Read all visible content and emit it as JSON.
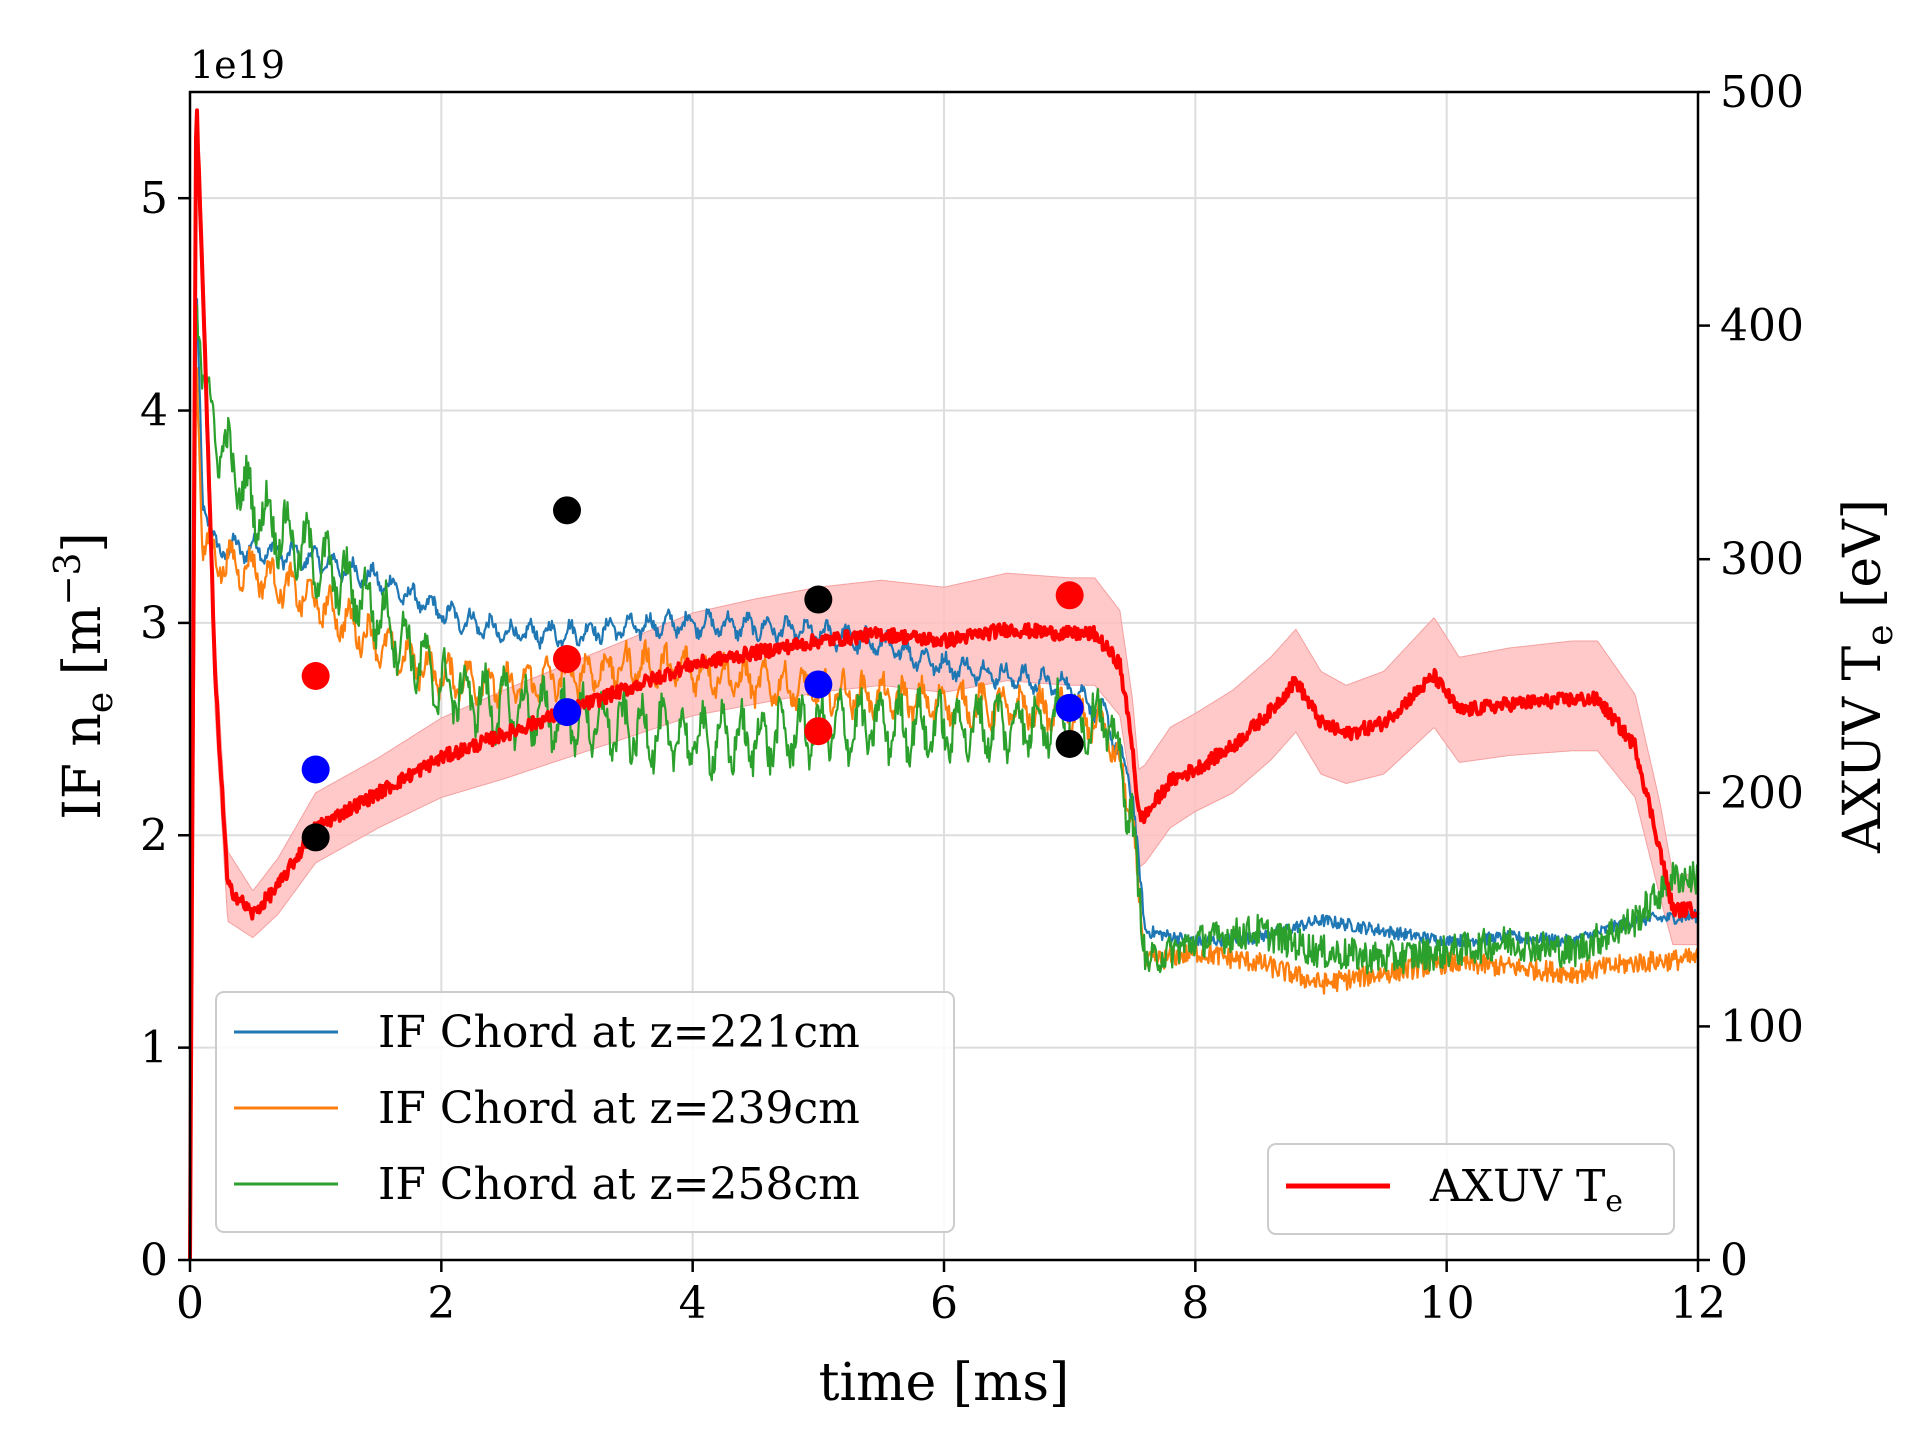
{
  "chart_data": {
    "type": "line",
    "xlabel": "time [ms]",
    "ylabel_left": "IF n",
    "ylabel_left_sub": "e",
    "ylabel_left_unit_open": " [m",
    "ylabel_left_sup": "−3",
    "ylabel_left_unit_close": "]",
    "ylabel_right": "AXUV T",
    "ylabel_right_sub": "e",
    "ylabel_right_unit": " [eV]",
    "offset_text": "1e19",
    "xlim": [
      0,
      12
    ],
    "ylim_left": [
      0,
      5.5
    ],
    "ylim_right": [
      0,
      500
    ],
    "x_ticks": [
      "0",
      "2",
      "4",
      "6",
      "8",
      "10",
      "12"
    ],
    "y_left_ticks": [
      "0",
      "1",
      "2",
      "3",
      "4",
      "5"
    ],
    "y_right_ticks": [
      "0",
      "100",
      "200",
      "300",
      "400",
      "500"
    ],
    "grid": true,
    "legend_left": {
      "placement": "lower-left",
      "entries": [
        "IF Chord at z=221cm",
        "IF Chord at z=239cm",
        "IF Chord at z=258cm"
      ]
    },
    "legend_right": {
      "placement": "lower-right",
      "label": "AXUV T",
      "label_sub": "e"
    },
    "series": [
      {
        "name": "IF Chord at z=221cm",
        "axis": "left",
        "color": "#1f77b4",
        "x": [
          0,
          0.05,
          0.1,
          0.2,
          0.5,
          1.0,
          1.5,
          2.0,
          2.5,
          3.0,
          3.5,
          4.0,
          4.5,
          5.0,
          5.5,
          6.0,
          6.5,
          7.0,
          7.3,
          7.5,
          7.6,
          8.0,
          8.5,
          9.0,
          9.5,
          10.0,
          10.5,
          11.0,
          11.5,
          12.0
        ],
        "y": [
          0,
          4.6,
          3.6,
          3.35,
          3.35,
          3.3,
          3.2,
          3.05,
          2.95,
          2.95,
          2.98,
          3.0,
          2.98,
          2.95,
          2.9,
          2.8,
          2.75,
          2.7,
          2.55,
          2.2,
          1.55,
          1.5,
          1.52,
          1.6,
          1.55,
          1.5,
          1.52,
          1.5,
          1.6,
          1.62
        ],
        "noise": 0.03
      },
      {
        "name": "IF Chord at z=239cm",
        "axis": "left",
        "color": "#ff7f0e",
        "x": [
          0,
          0.05,
          0.1,
          0.2,
          0.5,
          1.0,
          1.5,
          2.0,
          2.5,
          3.0,
          3.5,
          4.0,
          4.5,
          5.0,
          5.5,
          6.0,
          6.5,
          7.0,
          7.3,
          7.5,
          7.6,
          8.0,
          8.5,
          9.0,
          9.5,
          10.0,
          10.5,
          11.0,
          11.5,
          12.0
        ],
        "y": [
          0,
          4.3,
          3.4,
          3.3,
          3.25,
          3.1,
          2.9,
          2.75,
          2.7,
          2.75,
          2.8,
          2.78,
          2.72,
          2.68,
          2.65,
          2.62,
          2.6,
          2.58,
          2.5,
          2.1,
          1.4,
          1.45,
          1.4,
          1.3,
          1.35,
          1.4,
          1.38,
          1.35,
          1.4,
          1.42
        ],
        "noise": 0.05
      },
      {
        "name": "IF Chord at z=258cm",
        "axis": "left",
        "color": "#2ca02c",
        "x": [
          0,
          0.05,
          0.1,
          0.2,
          0.5,
          1.0,
          1.5,
          2.0,
          2.5,
          3.0,
          3.5,
          4.0,
          4.5,
          5.0,
          5.5,
          6.0,
          6.5,
          7.0,
          7.3,
          7.5,
          7.6,
          8.0,
          8.5,
          9.0,
          9.5,
          10.0,
          10.5,
          11.0,
          11.5,
          11.8,
          12.0
        ],
        "y": [
          0,
          4.6,
          4.2,
          3.9,
          3.55,
          3.3,
          3.05,
          2.7,
          2.6,
          2.55,
          2.5,
          2.45,
          2.45,
          2.5,
          2.52,
          2.5,
          2.52,
          2.55,
          2.55,
          2.1,
          1.4,
          1.5,
          1.55,
          1.45,
          1.42,
          1.45,
          1.5,
          1.45,
          1.6,
          1.8,
          1.8
        ],
        "noise": 0.08
      },
      {
        "name": "AXUV T",
        "axis": "right",
        "color": "#ff0000",
        "band_color": "#ffc0c0",
        "x": [
          0,
          0.05,
          0.1,
          0.2,
          0.3,
          0.5,
          0.7,
          1.0,
          1.5,
          2.0,
          2.5,
          3.0,
          3.5,
          4.0,
          4.5,
          5.0,
          5.5,
          6.0,
          6.5,
          7.0,
          7.2,
          7.4,
          7.5,
          7.55,
          7.6,
          7.8,
          8.0,
          8.3,
          8.6,
          8.8,
          9.0,
          9.2,
          9.5,
          9.9,
          10.1,
          10.5,
          11.0,
          11.2,
          11.5,
          11.7,
          11.8,
          12.0
        ],
        "y": [
          0,
          500,
          420,
          250,
          160,
          148,
          160,
          185,
          200,
          215,
          225,
          235,
          245,
          255,
          260,
          265,
          268,
          265,
          270,
          268,
          268,
          255,
          220,
          190,
          190,
          205,
          210,
          220,
          235,
          248,
          230,
          225,
          230,
          250,
          235,
          238,
          240,
          240,
          220,
          175,
          150,
          150
        ],
        "band_lower": [
          0,
          480,
          400,
          235,
          145,
          138,
          148,
          170,
          185,
          198,
          206,
          215,
          224,
          233,
          238,
          243,
          246,
          243,
          248,
          246,
          246,
          233,
          198,
          168,
          170,
          185,
          192,
          200,
          214,
          226,
          208,
          204,
          208,
          228,
          213,
          216,
          218,
          218,
          198,
          155,
          135,
          135
        ],
        "band_upper": [
          0,
          500,
          440,
          265,
          175,
          158,
          172,
          200,
          215,
          232,
          244,
          255,
          266,
          277,
          283,
          288,
          291,
          288,
          294,
          292,
          292,
          278,
          240,
          210,
          212,
          228,
          234,
          244,
          258,
          270,
          252,
          246,
          252,
          275,
          258,
          262,
          265,
          265,
          242,
          195,
          165,
          165
        ],
        "noise": 3
      }
    ],
    "markers": [
      {
        "color": "#ff0000",
        "axis": "left",
        "x": [
          1,
          3,
          5,
          7
        ],
        "y": [
          2.75,
          2.83,
          2.49,
          3.13
        ]
      },
      {
        "color": "#0000ff",
        "axis": "left",
        "x": [
          1,
          3,
          5,
          7
        ],
        "y": [
          2.31,
          2.58,
          2.71,
          2.6
        ]
      },
      {
        "color": "#000000",
        "axis": "left",
        "x": [
          1,
          3,
          5,
          7
        ],
        "y": [
          1.99,
          3.53,
          3.11,
          2.43
        ]
      }
    ]
  }
}
